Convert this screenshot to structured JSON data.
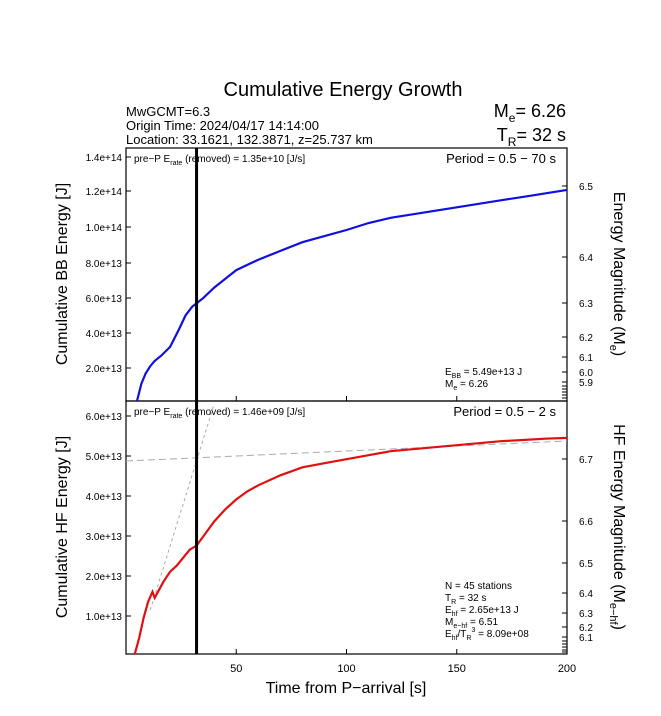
{
  "title": "Cumulative Energy Growth",
  "info": {
    "mw": "MwGCMT=6.3",
    "origin": "Origin Time: 2024/04/17 14:14:00",
    "location": "Location: 33.1621, 132.3871, z=25.737 km",
    "me_label": "M",
    "me_sub": "e",
    "me_value": "= 6.26",
    "tr_label": "T",
    "tr_sub": "R",
    "tr_value": "= 32 s"
  },
  "x_axis": {
    "label": "Time from P−arrival [s]",
    "ticks": [
      50,
      100,
      150,
      200
    ],
    "range": [
      0,
      200
    ]
  },
  "p_marker_time": 32,
  "colors": {
    "bb": "#1010e0",
    "hf": "#e01010",
    "marker": "#000000",
    "guide": "#aaaaaa"
  },
  "panels": {
    "bb": {
      "ylabel": "Cumulative BB Energy [J]",
      "y2label": "Energy Magnitude (M",
      "y2label_sub": "e",
      "y2label_end": ")",
      "yticks": [
        "1.4e+14",
        "1.2e+14",
        "1.0e+14",
        "8.0e+13",
        "6.0e+13",
        "4.0e+13",
        "2.0e+13"
      ],
      "y2ticks": [
        "6.5",
        "6.4",
        "6.3",
        "6.2",
        "6.1",
        "6.0",
        "5.9"
      ],
      "prep_a": "pre−P E",
      "prep_sub": "rate",
      "prep_b": " (removed) = 1.35e+10 [J/s]",
      "period": "Period = 0.5 − 70 s",
      "stats": [
        {
          "a": "E",
          "sub": "BB",
          "b": " = 5.49e+13 J"
        },
        {
          "a": "M",
          "sub": "e",
          "b": " = 6.26"
        }
      ]
    },
    "hf": {
      "ylabel": "Cumulative HF Energy [J]",
      "y2label": "HF Energy Magnitude (M",
      "y2label_sub": "e−hf",
      "y2label_end": ")",
      "yticks": [
        "6.0e+13",
        "5.0e+13",
        "4.0e+13",
        "3.0e+13",
        "2.0e+13",
        "1.0e+13"
      ],
      "y2ticks": [
        "6.7",
        "6.6",
        "6.5",
        "6.4",
        "6.3",
        "6.2",
        "6.1"
      ],
      "prep_a": "pre−P E",
      "prep_sub": "rate",
      "prep_b": " (removed) = 1.46e+09 [J/s]",
      "period": "Period = 0.5 − 2 s",
      "stats": [
        {
          "a": "N = 45 stations",
          "sub": "",
          "b": ""
        },
        {
          "a": "T",
          "sub": "R",
          "b": " = 32  s"
        },
        {
          "a": "E",
          "sub": "hf",
          "b": " = 2.65e+13 J"
        },
        {
          "a": "M",
          "sub": "e−hf",
          "b": " = 6.51"
        },
        {
          "a": "E",
          "sub": "hf",
          "b": "/T",
          "sub2": "R",
          "b2": "3",
          "c": "  = 8.09e+08"
        }
      ]
    }
  },
  "chart_data": [
    {
      "type": "line",
      "name": "Cumulative BB Energy",
      "xlabel": "Time from P−arrival [s]",
      "ylabel": "Cumulative BB Energy [J]",
      "xlim": [
        0,
        200
      ],
      "ylim": [
        0,
        145000000000000.0
      ],
      "x": [
        5,
        7,
        9,
        11,
        13,
        16,
        20,
        24,
        27,
        30,
        32,
        35,
        40,
        45,
        50,
        55,
        60,
        70,
        80,
        90,
        100,
        110,
        120,
        130,
        140,
        150,
        160,
        170,
        180,
        190,
        200
      ],
      "y": [
        0,
        10000000000000.0,
        16000000000000.0,
        20000000000000.0,
        23000000000000.0,
        26000000000000.0,
        31000000000000.0,
        41000000000000.0,
        49000000000000.0,
        54000000000000.0,
        56000000000000.0,
        59000000000000.0,
        65000000000000.0,
        70000000000000.0,
        75000000000000.0,
        78000000000000.0,
        81000000000000.0,
        86000000000000.0,
        91000000000000.0,
        94500000000000.0,
        98000000000000.0,
        102000000000000.0,
        105000000000000.0,
        107000000000000.0,
        109000000000000.0,
        111000000000000.0,
        113000000000000.0,
        115000000000000.0,
        117000000000000.0,
        119000000000000.0,
        121000000000000.0
      ]
    },
    {
      "type": "line",
      "name": "Cumulative HF Energy",
      "xlabel": "Time from P−arrival [s]",
      "ylabel": "Cumulative HF Energy [J]",
      "xlim": [
        0,
        200
      ],
      "ylim": [
        0,
        63000000000000.0
      ],
      "x": [
        4,
        6,
        8,
        10,
        12,
        13,
        15,
        17,
        20,
        23,
        26,
        29,
        32,
        36,
        40,
        45,
        50,
        55,
        60,
        70,
        80,
        90,
        100,
        110,
        120,
        130,
        140,
        150,
        160,
        170,
        180,
        190,
        200
      ],
      "y": [
        0,
        4000000000000.0,
        9000000000000.0,
        13000000000000.0,
        15500000000000.0,
        14000000000000.0,
        16000000000000.0,
        18000000000000.0,
        20500000000000.0,
        22000000000000.0,
        24000000000000.0,
        26000000000000.0,
        27000000000000.0,
        30000000000000.0,
        33000000000000.0,
        36000000000000.0,
        38500000000000.0,
        40500000000000.0,
        42000000000000.0,
        44500000000000.0,
        46500000000000.0,
        47500000000000.0,
        48500000000000.0,
        49500000000000.0,
        50500000000000.0,
        51000000000000.0,
        51500000000000.0,
        52000000000000.0,
        52500000000000.0,
        53000000000000.0,
        53300000000000.0,
        53600000000000.0,
        53800000000000.0
      ]
    }
  ]
}
